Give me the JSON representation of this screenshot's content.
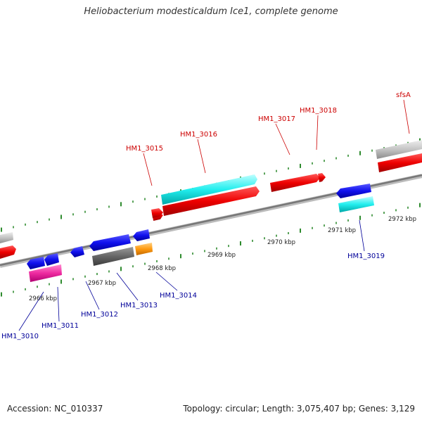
{
  "title": "Heliobacterium modesticaldum Ice1, complete genome",
  "footer": {
    "accession": "Accession: NC_010337",
    "summary": "Topology: circular; Length: 3,075,407 bp; Genes: 3,129"
  },
  "colors": {
    "forward_label": "#cc0000",
    "reverse_label": "#000099",
    "tick": "#2e8b2e",
    "axis": "#888888"
  },
  "scale_labels": [
    "2966 kbp",
    "2967 kbp",
    "2968 kbp",
    "2969 kbp",
    "2970 kbp",
    "2971 kbp",
    "2972 kbp"
  ],
  "gene_labels": {
    "forward": [
      "HM1_3015",
      "HM1_3016",
      "HM1_3017",
      "HM1_3018",
      "sfsA"
    ],
    "reverse": [
      "HM1_3010",
      "HM1_3011",
      "HM1_3012",
      "HM1_3013",
      "HM1_3014",
      "HM1_3019"
    ]
  }
}
